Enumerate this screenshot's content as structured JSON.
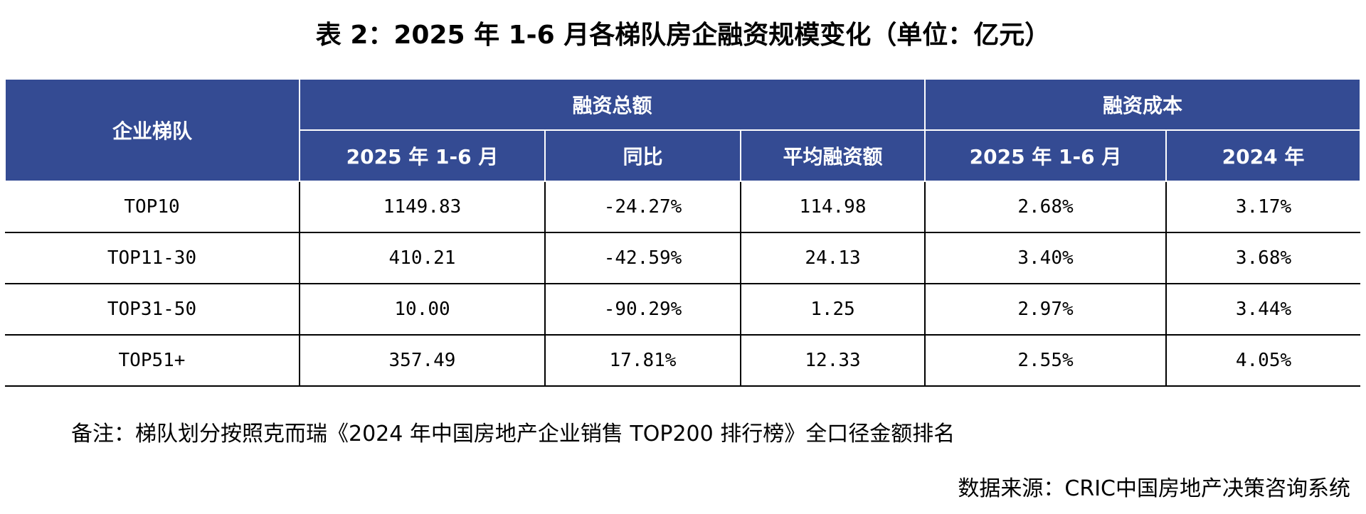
{
  "title": "表 2：2025 年 1-6 月各梯队房企融资规模变化（单位：亿元）",
  "table": {
    "row_header": "企业梯队",
    "groups": [
      {
        "label": "融资总额",
        "columns": [
          "2025 年 1-6 月",
          "同比",
          "平均融资额"
        ]
      },
      {
        "label": "融资成本",
        "columns": [
          "2025 年 1-6 月",
          "2024 年"
        ]
      }
    ],
    "rows": [
      [
        "TOP10",
        "1149.83",
        "-24.27%",
        "114.98",
        "2.68%",
        "3.17%"
      ],
      [
        "TOP11-30",
        "410.21",
        "-42.59%",
        "24.13",
        "3.40%",
        "3.68%"
      ],
      [
        "TOP31-50",
        "10.00",
        "-90.29%",
        "1.25",
        "2.97%",
        "3.44%"
      ],
      [
        "TOP51+",
        "357.49",
        "17.81%",
        "12.33",
        "2.55%",
        "4.05%"
      ]
    ]
  },
  "note": "备注：梯队划分按照克而瑞《2024 年中国房地产企业销售 TOP200 排行榜》全口径金额排名",
  "source": "数据来源：CRIC中国房地产决策咨询系统"
}
